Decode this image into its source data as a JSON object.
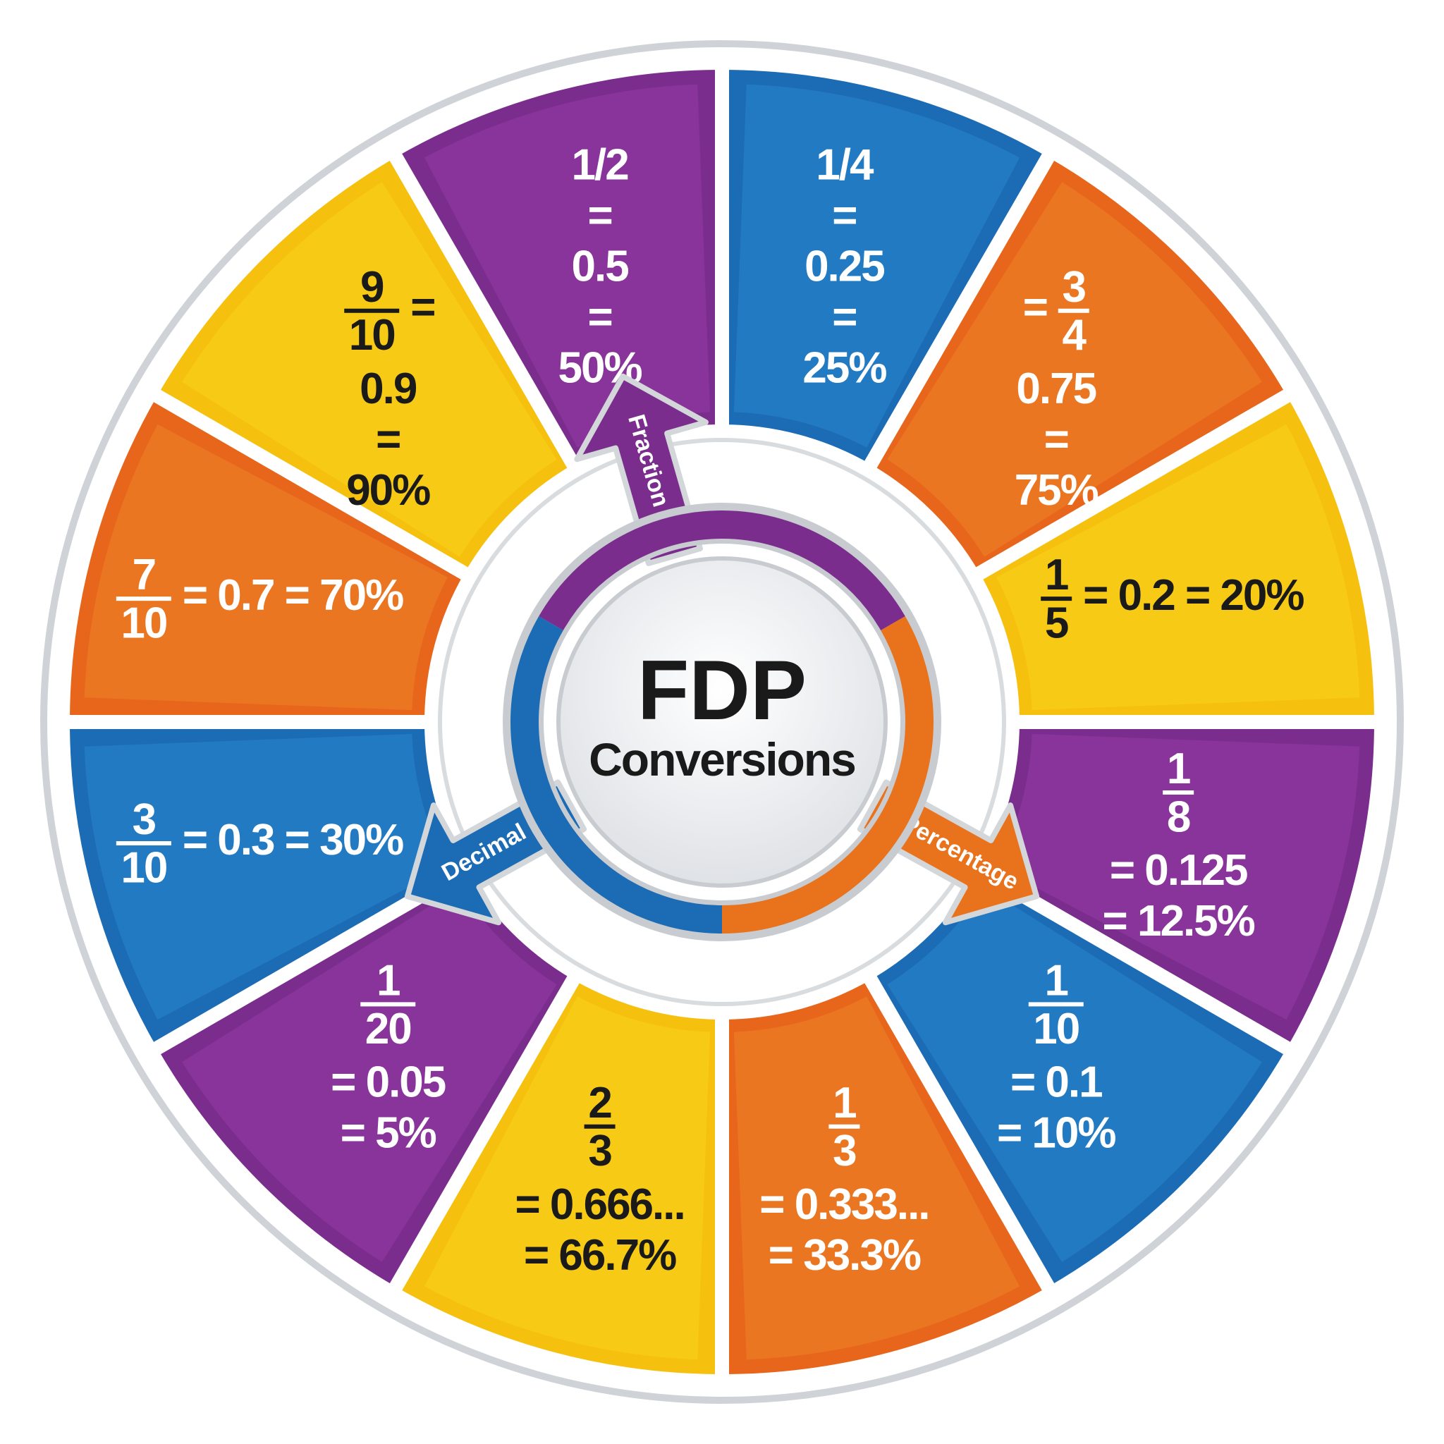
{
  "center": {
    "title": "FDP",
    "subtitle": "Conversions"
  },
  "arrows": [
    {
      "label": "Fraction",
      "color": "#7b2d8e"
    },
    {
      "label": "Decimal",
      "color": "#1c6bb5"
    },
    {
      "label": "Percentage",
      "color": "#e8731c"
    }
  ],
  "colors": {
    "purple": "#7b2d8e",
    "blue": "#1c6bb5",
    "orange": "#e8661c",
    "yellow": "#f5c10e",
    "rim": "#cfd2d6"
  },
  "segments": [
    {
      "color": "blue",
      "lines": [
        "1/4",
        "=",
        "0.25",
        "=",
        "25%"
      ]
    },
    {
      "color": "orange",
      "lines": [
        {
          "num": "3",
          "den": "4",
          "before": "="
        },
        "0.75",
        "=",
        "75%"
      ]
    },
    {
      "color": "yellow",
      "lines": [
        {
          "num": "1",
          "den": "5",
          "after": "= 0.2 = 20%"
        }
      ]
    },
    {
      "color": "purple",
      "lines": [
        {
          "num": "1",
          "den": "8"
        },
        "= 0.125",
        "= 12.5%"
      ]
    },
    {
      "color": "blue",
      "lines": [
        {
          "num": "1",
          "den": "10"
        },
        "= 0.1",
        "= 10%"
      ]
    },
    {
      "color": "orange",
      "lines": [
        {
          "num": "1",
          "den": "3"
        },
        "= 0.333...",
        "= 33.3%"
      ]
    },
    {
      "color": "yellow",
      "lines": [
        {
          "num": "2",
          "den": "3"
        },
        "= 0.666...",
        "= 66.7%"
      ]
    },
    {
      "color": "purple",
      "lines": [
        {
          "num": "1",
          "den": "20"
        },
        "= 0.05",
        "= 5%"
      ]
    },
    {
      "color": "blue",
      "lines": [
        {
          "num": "3",
          "den": "10",
          "after": "= 0.3 = 30%"
        }
      ]
    },
    {
      "color": "orange",
      "lines": [
        {
          "num": "7",
          "den": "10",
          "after": "= 0.7 = 70%"
        }
      ]
    },
    {
      "color": "yellow",
      "lines": [
        {
          "num": "9",
          "den": "10",
          "after": "="
        },
        "0.9",
        "=",
        "90%"
      ]
    },
    {
      "color": "purple",
      "lines": [
        "1/2",
        "=",
        "0.5",
        "=",
        "50%"
      ]
    }
  ]
}
